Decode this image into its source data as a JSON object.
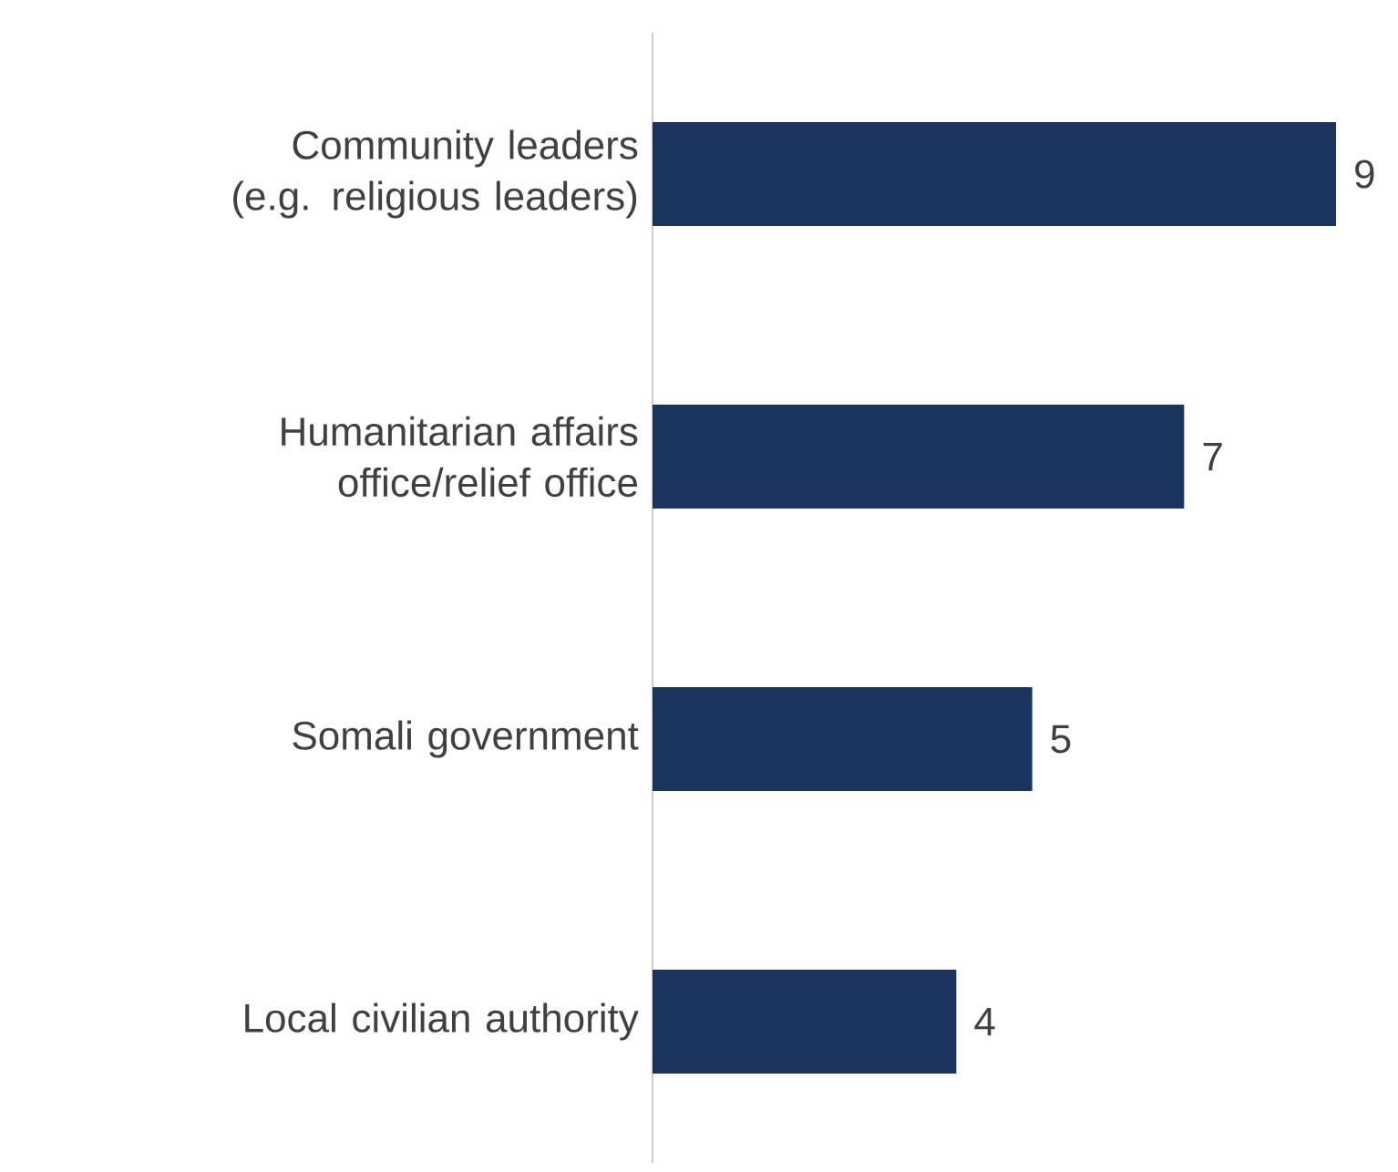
{
  "chart_data": {
    "type": "bar",
    "orientation": "horizontal",
    "categories": [
      "Community leaders (e.g. religious leaders)",
      "Humanitarian affairs office/relief office",
      "Somali government",
      "Local civilian authority"
    ],
    "values": [
      9,
      7,
      5,
      4
    ],
    "color": "#1b355e",
    "data_labels": true
  }
}
